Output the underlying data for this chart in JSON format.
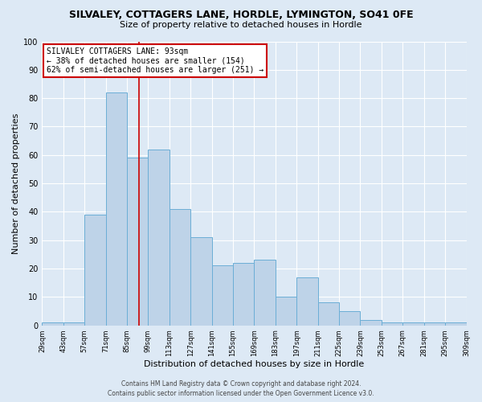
{
  "title": "SILVALEY, COTTAGERS LANE, HORDLE, LYMINGTON, SO41 0FE",
  "subtitle": "Size of property relative to detached houses in Hordle",
  "xlabel": "Distribution of detached houses by size in Hordle",
  "ylabel": "Number of detached properties",
  "bin_edges": [
    29,
    43,
    57,
    71,
    85,
    99,
    113,
    127,
    141,
    155,
    169,
    183,
    197,
    211,
    225,
    239,
    253,
    267,
    281,
    295,
    309
  ],
  "bar_values": [
    1,
    1,
    39,
    82,
    59,
    62,
    41,
    31,
    21,
    22,
    23,
    10,
    17,
    8,
    5,
    2,
    1,
    1,
    1,
    1
  ],
  "ylim": [
    0,
    100
  ],
  "bar_color": "#bed3e8",
  "bar_edge_color": "#6baed6",
  "vline_x": 93,
  "vline_color": "#cc0000",
  "annotation_title": "SILVALEY COTTAGERS LANE: 93sqm",
  "annotation_line1": "← 38% of detached houses are smaller (154)",
  "annotation_line2": "62% of semi-detached houses are larger (251) →",
  "annotation_box_facecolor": "#ffffff",
  "annotation_box_edgecolor": "#cc0000",
  "background_color": "#dde9f5",
  "grid_color": "#ffffff",
  "footer_line1": "Contains HM Land Registry data © Crown copyright and database right 2024.",
  "footer_line2": "Contains public sector information licensed under the Open Government Licence v3.0.",
  "tick_labels": [
    "29sqm",
    "43sqm",
    "57sqm",
    "71sqm",
    "85sqm",
    "99sqm",
    "113sqm",
    "127sqm",
    "141sqm",
    "155sqm",
    "169sqm",
    "183sqm",
    "197sqm",
    "211sqm",
    "225sqm",
    "239sqm",
    "253sqm",
    "267sqm",
    "281sqm",
    "295sqm",
    "309sqm"
  ],
  "yticks": [
    0,
    10,
    20,
    30,
    40,
    50,
    60,
    70,
    80,
    90,
    100
  ],
  "title_fontsize": 9,
  "subtitle_fontsize": 8,
  "xlabel_fontsize": 8,
  "ylabel_fontsize": 8,
  "xtick_fontsize": 6,
  "ytick_fontsize": 7,
  "footer_fontsize": 5.5,
  "ann_fontsize": 7
}
